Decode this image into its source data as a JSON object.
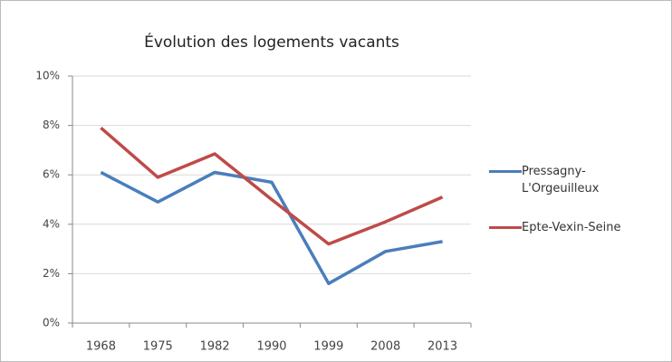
{
  "chart_data": {
    "type": "line",
    "title": "Évolution des logements vacants",
    "categories": [
      "1968",
      "1975",
      "1982",
      "1990",
      "1999",
      "2008",
      "2013"
    ],
    "series": [
      {
        "name": "Pressagny-L'Orgeuilleux",
        "color": "#4a7ebb",
        "values": [
          6.1,
          4.9,
          6.1,
          5.7,
          1.6,
          2.9,
          3.3
        ]
      },
      {
        "name": "Epte-Vexin-Seine",
        "color": "#be4b48",
        "values": [
          7.9,
          5.9,
          6.85,
          5.0,
          3.2,
          4.1,
          5.1
        ]
      }
    ],
    "ylim": [
      0,
      10
    ],
    "yticks": [
      {
        "value": 0,
        "label": "0%"
      },
      {
        "value": 2,
        "label": "2%"
      },
      {
        "value": 4,
        "label": "4%"
      },
      {
        "value": 6,
        "label": "6%"
      },
      {
        "value": 8,
        "label": "8%"
      },
      {
        "value": 10,
        "label": "10%"
      }
    ],
    "grid": true,
    "legend": "right"
  }
}
